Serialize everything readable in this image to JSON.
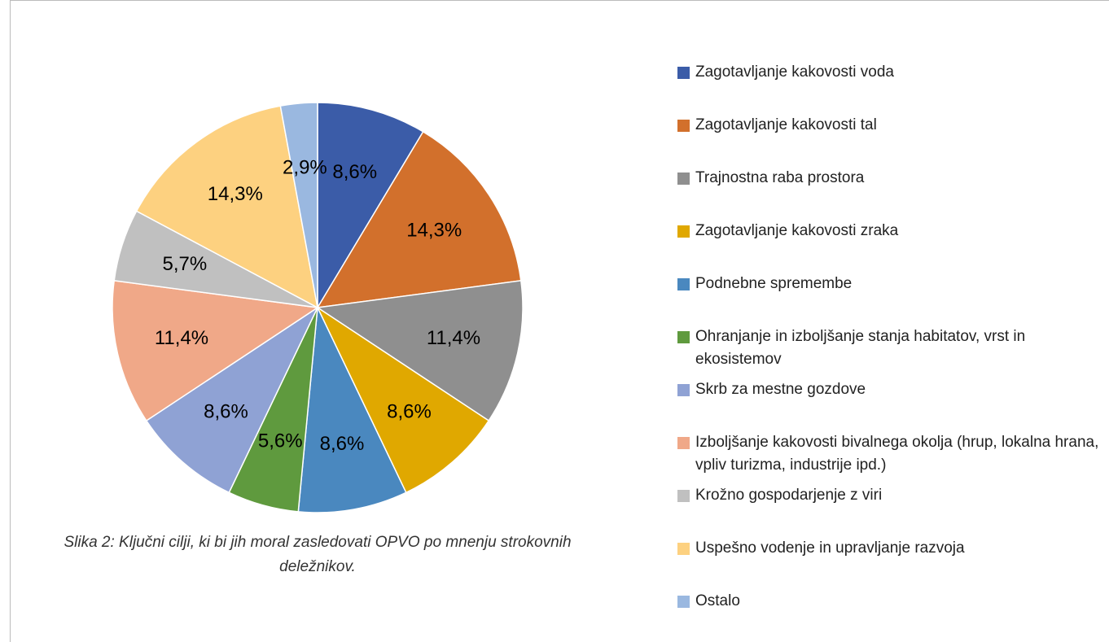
{
  "chart_data": {
    "type": "pie",
    "categories": [
      "Zagotavljanje kakovosti voda",
      "Zagotavljanje kakovosti tal",
      "Trajnostna raba prostora",
      "Zagotavljanje kakovosti zraka",
      "Podnebne spremembe",
      "Ohranjanje in izboljšanje stanja habitatov, vrst in ekosistemov",
      "Skrb za mestne gozdove",
      "Izboljšanje kakovosti bivalnega okolja (hrup, lokalna hrana, vpliv turizma, industrije ipd.)",
      "Krožno gospodarjenje z viri",
      "Uspešno vodenje in upravljanje razvoja",
      "Ostalo"
    ],
    "values": [
      8.6,
      14.3,
      11.4,
      8.6,
      8.6,
      5.6,
      8.6,
      11.4,
      5.7,
      14.3,
      2.9
    ],
    "value_labels": [
      "8,6%",
      "14,3%",
      "11,4%",
      "8,6%",
      "8,6%",
      "5,6%",
      "8,6%",
      "11,4%",
      "5,7%",
      "14,3%",
      "2,9%"
    ],
    "colors": [
      "#3b5ca8",
      "#d2702c",
      "#8f8f8f",
      "#e0a800",
      "#4a88bf",
      "#5f9a3e",
      "#8fa2d4",
      "#f0a888",
      "#c0c0c0",
      "#fdd180",
      "#9ab8e0"
    ],
    "caption": "Slika 2: Ključni cilji,  ki bi jih moral zasledovati OPVO po mnenju strokovnih deležnikov.",
    "legend": "right"
  }
}
